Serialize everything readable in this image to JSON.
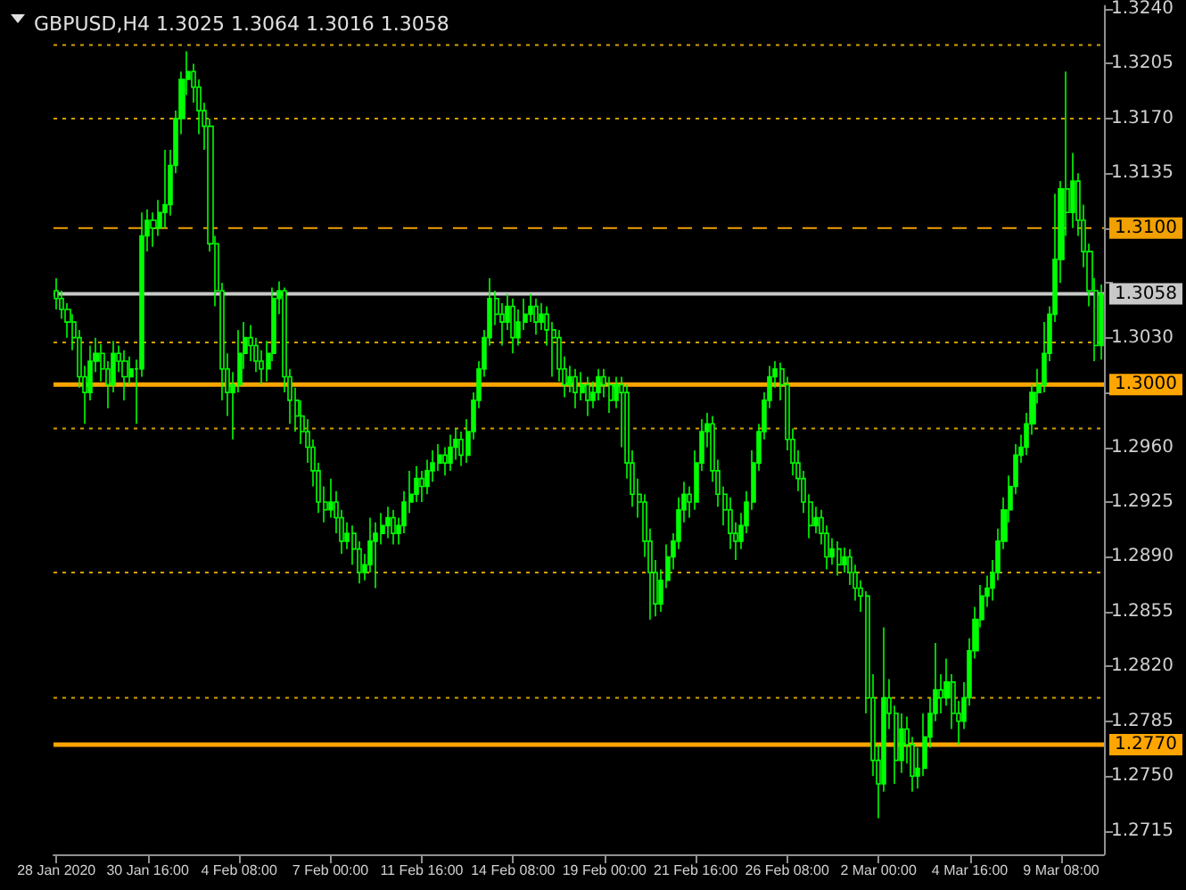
{
  "chart_data": {
    "type": "candlestick",
    "title": "GBPUSD,H4 1.3025 1.3064 1.3016 1.3058",
    "color": "#00ff00",
    "categories": [
      "28 Jan 2020",
      null,
      null,
      null,
      null,
      null,
      null,
      null,
      null,
      null,
      null,
      null,
      null,
      null,
      null,
      null,
      "30 Jan 16:00",
      null,
      null,
      null,
      null,
      null,
      null,
      null,
      null,
      null,
      null,
      null,
      null,
      null,
      null,
      null,
      "4 Feb 08:00",
      null,
      null,
      null,
      null,
      null,
      null,
      null,
      null,
      null,
      null,
      null,
      null,
      null,
      null,
      null,
      "7 Feb 00:00",
      null,
      null,
      null,
      null,
      null,
      null,
      null,
      null,
      null,
      null,
      null,
      null,
      null,
      null,
      null,
      "11 Feb 16:00",
      null,
      null,
      null,
      null,
      null,
      null,
      null,
      null,
      null,
      null,
      null,
      null,
      null,
      null,
      null,
      "14 Feb 08:00",
      null,
      null,
      null,
      null,
      null,
      null,
      null,
      null,
      null,
      null,
      null,
      null,
      null,
      null,
      null,
      "19 Feb 00:00",
      null,
      null,
      null,
      null,
      null,
      null,
      null,
      null,
      null,
      null,
      null,
      null,
      null,
      null,
      null,
      "21 Feb 16:00",
      null,
      null,
      null,
      null,
      null,
      null,
      null,
      null,
      null,
      null,
      null,
      null,
      null,
      null,
      null,
      "26 Feb 08:00",
      null,
      null,
      null,
      null,
      null,
      null,
      null,
      null,
      null,
      null,
      null,
      null,
      null,
      null,
      null,
      "2 Mar 00:00",
      null,
      null,
      null,
      null,
      null,
      null,
      null,
      null,
      null,
      null,
      null,
      null,
      null,
      null,
      null,
      "4 Mar 16:00",
      null,
      null,
      null,
      null,
      null,
      null,
      null,
      null,
      null,
      null,
      null,
      null,
      null,
      null,
      null,
      "9 Mar 08:00",
      null,
      null,
      null,
      null,
      null,
      null,
      null
    ],
    "ohlc": [
      [
        1.306,
        1.3068,
        1.3048,
        1.3055
      ],
      [
        1.3055,
        1.306,
        1.3042,
        1.3048
      ],
      [
        1.3048,
        1.3052,
        1.303,
        1.304
      ],
      [
        1.304,
        1.3045,
        1.3022,
        1.303
      ],
      [
        1.303,
        1.3035,
        1.2998,
        1.3005
      ],
      [
        1.3005,
        1.3012,
        1.2975,
        1.2995
      ],
      [
        1.2995,
        1.3025,
        1.299,
        1.3015
      ],
      [
        1.3015,
        1.303,
        1.3008,
        1.302
      ],
      [
        1.302,
        1.3026,
        1.3002,
        1.301
      ],
      [
        1.301,
        1.3015,
        1.2985,
        1.3
      ],
      [
        1.3,
        1.3028,
        1.2995,
        1.302
      ],
      [
        1.302,
        1.3025,
        1.3008,
        1.3015
      ],
      [
        1.3015,
        1.3022,
        1.299,
        1.3005
      ],
      [
        1.3005,
        1.3018,
        1.3,
        1.301
      ],
      [
        1.301,
        1.3016,
        1.2975,
        1.301
      ],
      [
        1.301,
        1.311,
        1.3005,
        1.3095
      ],
      [
        1.3095,
        1.3112,
        1.3085,
        1.3105
      ],
      [
        1.3105,
        1.311,
        1.3088,
        1.31
      ],
      [
        1.31,
        1.3118,
        1.3095,
        1.311
      ],
      [
        1.311,
        1.315,
        1.31,
        1.3115
      ],
      [
        1.3115,
        1.315,
        1.3108,
        1.314
      ],
      [
        1.314,
        1.3175,
        1.3135,
        1.317
      ],
      [
        1.317,
        1.32,
        1.316,
        1.3195
      ],
      [
        1.3195,
        1.3213,
        1.3185,
        1.32
      ],
      [
        1.32,
        1.3205,
        1.318,
        1.319
      ],
      [
        1.319,
        1.3195,
        1.316,
        1.3175
      ],
      [
        1.3175,
        1.318,
        1.315,
        1.3165
      ],
      [
        1.3165,
        1.317,
        1.3085,
        1.309
      ],
      [
        1.309,
        1.3095,
        1.305,
        1.306
      ],
      [
        1.306,
        1.3065,
        1.299,
        1.301
      ],
      [
        1.301,
        1.302,
        1.298,
        1.2995
      ],
      [
        1.2995,
        1.3008,
        1.2965,
        1.3
      ],
      [
        1.3,
        1.3035,
        1.2995,
        1.302
      ],
      [
        1.302,
        1.304,
        1.301,
        1.303
      ],
      [
        1.303,
        1.3038,
        1.3015,
        1.3025
      ],
      [
        1.3025,
        1.303,
        1.3008,
        1.3015
      ],
      [
        1.3015,
        1.3022,
        1.3,
        1.301
      ],
      [
        1.301,
        1.3028,
        1.3002,
        1.302
      ],
      [
        1.302,
        1.3062,
        1.3015,
        1.3055
      ],
      [
        1.3055,
        1.3066,
        1.3045,
        1.306
      ],
      [
        1.306,
        1.3062,
        1.2995,
        1.3005
      ],
      [
        1.3005,
        1.301,
        1.2975,
        1.299
      ],
      [
        1.299,
        1.2998,
        1.297,
        1.298
      ],
      [
        1.298,
        1.299,
        1.2962,
        1.297
      ],
      [
        1.297,
        1.2978,
        1.295,
        1.296
      ],
      [
        1.296,
        1.2965,
        1.2935,
        1.2945
      ],
      [
        1.2945,
        1.295,
        1.2918,
        1.2925
      ],
      [
        1.2925,
        1.2935,
        1.2912,
        1.292
      ],
      [
        1.292,
        1.294,
        1.2915,
        1.2925
      ],
      [
        1.2925,
        1.2932,
        1.2905,
        1.2915
      ],
      [
        1.2915,
        1.292,
        1.2892,
        1.29
      ],
      [
        1.29,
        1.2912,
        1.2895,
        1.2905
      ],
      [
        1.2905,
        1.291,
        1.2885,
        1.2895
      ],
      [
        1.2895,
        1.29,
        1.2873,
        1.288
      ],
      [
        1.288,
        1.2892,
        1.2875,
        1.2885
      ],
      [
        1.2885,
        1.2915,
        1.288,
        1.29
      ],
      [
        1.29,
        1.2912,
        1.287,
        1.2905
      ],
      [
        1.2905,
        1.2918,
        1.2898,
        1.291
      ],
      [
        1.291,
        1.2922,
        1.2902,
        1.2915
      ],
      [
        1.2915,
        1.292,
        1.2898,
        1.2905
      ],
      [
        1.2905,
        1.2915,
        1.2898,
        1.291
      ],
      [
        1.291,
        1.2932,
        1.2905,
        1.2925
      ],
      [
        1.2925,
        1.2945,
        1.2918,
        1.293
      ],
      [
        1.293,
        1.2948,
        1.2925,
        1.294
      ],
      [
        1.294,
        1.2945,
        1.2925,
        1.2935
      ],
      [
        1.2935,
        1.2952,
        1.293,
        1.2945
      ],
      [
        1.2945,
        1.2958,
        1.2938,
        1.295
      ],
      [
        1.295,
        1.2962,
        1.2945,
        1.2955
      ],
      [
        1.2955,
        1.296,
        1.2942,
        1.295
      ],
      [
        1.295,
        1.2968,
        1.2945,
        1.296
      ],
      [
        1.296,
        1.2972,
        1.2952,
        1.2965
      ],
      [
        1.2965,
        1.297,
        1.2948,
        1.2955
      ],
      [
        1.2955,
        1.2978,
        1.295,
        1.297
      ],
      [
        1.297,
        1.2995,
        1.2965,
        1.299
      ],
      [
        1.299,
        1.3015,
        1.2985,
        1.301
      ],
      [
        1.301,
        1.3035,
        1.3005,
        1.303
      ],
      [
        1.303,
        1.3068,
        1.3025,
        1.3055
      ],
      [
        1.3055,
        1.306,
        1.3038,
        1.3045
      ],
      [
        1.3045,
        1.3052,
        1.3025,
        1.304
      ],
      [
        1.304,
        1.3058,
        1.3035,
        1.305
      ],
      [
        1.305,
        1.3055,
        1.302,
        1.303
      ],
      [
        1.303,
        1.3048,
        1.3025,
        1.304
      ],
      [
        1.304,
        1.3055,
        1.3035,
        1.3045
      ],
      [
        1.3045,
        1.3058,
        1.304,
        1.305
      ],
      [
        1.305,
        1.3055,
        1.3032,
        1.304
      ],
      [
        1.304,
        1.3052,
        1.3035,
        1.3045
      ],
      [
        1.3045,
        1.305,
        1.3025,
        1.3035
      ],
      [
        1.3035,
        1.304,
        1.3005,
        1.303
      ],
      [
        1.303,
        1.3035,
        1.3002,
        1.301
      ],
      [
        1.301,
        1.3018,
        1.2992,
        1.3
      ],
      [
        1.3,
        1.3012,
        1.2995,
        1.3005
      ],
      [
        1.3005,
        1.301,
        1.2985,
        1.2995
      ],
      [
        1.2995,
        1.3008,
        1.299,
        1.3
      ],
      [
        1.3,
        1.3005,
        1.298,
        1.299
      ],
      [
        1.299,
        1.3002,
        1.2985,
        1.2995
      ],
      [
        1.2995,
        1.301,
        1.299,
        1.3005
      ],
      [
        1.3005,
        1.301,
        1.2992,
        1.3
      ],
      [
        1.3,
        1.3005,
        1.2982,
        1.299
      ],
      [
        1.299,
        1.3005,
        1.2985,
        1.3
      ],
      [
        1.3,
        1.3005,
        1.296,
        1.2995
      ],
      [
        1.2995,
        1.3,
        1.294,
        1.295
      ],
      [
        1.295,
        1.2958,
        1.2922,
        1.293
      ],
      [
        1.293,
        1.294,
        1.2915,
        1.2925
      ],
      [
        1.2925,
        1.293,
        1.289,
        1.29
      ],
      [
        1.29,
        1.2908,
        1.285,
        1.288
      ],
      [
        1.288,
        1.2888,
        1.2852,
        1.286
      ],
      [
        1.286,
        1.2882,
        1.2855,
        1.2875
      ],
      [
        1.2875,
        1.2898,
        1.287,
        1.289
      ],
      [
        1.289,
        1.2905,
        1.2882,
        1.29
      ],
      [
        1.29,
        1.2928,
        1.2895,
        1.292
      ],
      [
        1.292,
        1.2938,
        1.2912,
        1.293
      ],
      [
        1.293,
        1.2935,
        1.2915,
        1.2925
      ],
      [
        1.2925,
        1.2958,
        1.292,
        1.295
      ],
      [
        1.295,
        1.2978,
        1.2945,
        1.297
      ],
      [
        1.297,
        1.2982,
        1.296,
        1.2975
      ],
      [
        1.2975,
        1.298,
        1.2938,
        1.2945
      ],
      [
        1.2945,
        1.2952,
        1.2922,
        1.293
      ],
      [
        1.293,
        1.2935,
        1.291,
        1.292
      ],
      [
        1.292,
        1.2928,
        1.2895,
        1.2905
      ],
      [
        1.2905,
        1.2912,
        1.2888,
        1.29
      ],
      [
        1.29,
        1.2918,
        1.2895,
        1.291
      ],
      [
        1.291,
        1.2932,
        1.2905,
        1.2925
      ],
      [
        1.2925,
        1.2958,
        1.292,
        1.295
      ],
      [
        1.295,
        1.2975,
        1.2945,
        1.297
      ],
      [
        1.297,
        1.2995,
        1.2965,
        1.299
      ],
      [
        1.299,
        1.3012,
        1.2985,
        1.3005
      ],
      [
        1.3005,
        1.3015,
        1.2998,
        1.301
      ],
      [
        1.301,
        1.3014,
        1.299,
        1.3
      ],
      [
        1.3,
        1.3005,
        1.2958,
        1.2965
      ],
      [
        1.2965,
        1.2972,
        1.2942,
        1.295
      ],
      [
        1.295,
        1.2958,
        1.2932,
        1.294
      ],
      [
        1.294,
        1.2945,
        1.2918,
        1.2925
      ],
      [
        1.2925,
        1.293,
        1.2902,
        1.291
      ],
      [
        1.291,
        1.2922,
        1.2905,
        1.2915
      ],
      [
        1.2915,
        1.292,
        1.2898,
        1.2905
      ],
      [
        1.2905,
        1.291,
        1.2882,
        1.289
      ],
      [
        1.289,
        1.2902,
        1.2885,
        1.2895
      ],
      [
        1.2895,
        1.29,
        1.2878,
        1.2885
      ],
      [
        1.2885,
        1.2896,
        1.288,
        1.289
      ],
      [
        1.289,
        1.2895,
        1.2872,
        1.288
      ],
      [
        1.288,
        1.2885,
        1.2862,
        1.287
      ],
      [
        1.287,
        1.2875,
        1.2855,
        1.2865
      ],
      [
        1.2865,
        1.2868,
        1.279,
        1.28
      ],
      [
        1.28,
        1.2815,
        1.275,
        1.276
      ],
      [
        1.276,
        1.277,
        1.2723,
        1.2745
      ],
      [
        1.2745,
        1.2845,
        1.274,
        1.28
      ],
      [
        1.28,
        1.2812,
        1.278,
        1.279
      ],
      [
        1.279,
        1.2795,
        1.2745,
        1.276
      ],
      [
        1.276,
        1.279,
        1.2752,
        1.278
      ],
      [
        1.278,
        1.2788,
        1.2758,
        1.277
      ],
      [
        1.277,
        1.2775,
        1.274,
        1.275
      ],
      [
        1.275,
        1.2768,
        1.2742,
        1.2755
      ],
      [
        1.2755,
        1.279,
        1.275,
        1.2775
      ],
      [
        1.2775,
        1.28,
        1.2768,
        1.279
      ],
      [
        1.279,
        1.2835,
        1.2785,
        1.2805
      ],
      [
        1.2805,
        1.2815,
        1.279,
        1.28
      ],
      [
        1.28,
        1.2825,
        1.2795,
        1.281
      ],
      [
        1.281,
        1.2815,
        1.278,
        1.279
      ],
      [
        1.279,
        1.2798,
        1.277,
        1.2785
      ],
      [
        1.2785,
        1.281,
        1.278,
        1.28
      ],
      [
        1.28,
        1.2838,
        1.2795,
        1.283
      ],
      [
        1.283,
        1.2858,
        1.2825,
        1.285
      ],
      [
        1.285,
        1.2872,
        1.2845,
        1.2865
      ],
      [
        1.2865,
        1.2878,
        1.2858,
        1.287
      ],
      [
        1.287,
        1.2888,
        1.2862,
        1.288
      ],
      [
        1.288,
        1.2908,
        1.2875,
        1.29
      ],
      [
        1.29,
        1.2928,
        1.2895,
        1.292
      ],
      [
        1.292,
        1.2942,
        1.2912,
        1.2935
      ],
      [
        1.2935,
        1.2962,
        1.293,
        1.2955
      ],
      [
        1.2955,
        1.2968,
        1.295,
        1.296
      ],
      [
        1.296,
        1.2982,
        1.2955,
        1.2975
      ],
      [
        1.2975,
        1.3,
        1.2968,
        1.2995
      ],
      [
        1.2995,
        1.301,
        1.2988,
        1.3
      ],
      [
        1.3,
        1.304,
        1.2995,
        1.302
      ],
      [
        1.302,
        1.305,
        1.3015,
        1.3045
      ],
      [
        1.3045,
        1.3122,
        1.304,
        1.308
      ],
      [
        1.308,
        1.313,
        1.3065,
        1.3125
      ],
      [
        1.3125,
        1.32,
        1.3095,
        1.311
      ],
      [
        1.311,
        1.3148,
        1.31,
        1.313
      ],
      [
        1.313,
        1.3135,
        1.3095,
        1.3105
      ],
      [
        1.3105,
        1.3115,
        1.3075,
        1.3085
      ],
      [
        1.3085,
        1.309,
        1.305,
        1.306
      ],
      [
        1.306,
        1.3068,
        1.3015,
        1.3025
      ],
      [
        1.3025,
        1.3064,
        1.3016,
        1.3058
      ]
    ],
    "ylim": [
      1.27,
      1.3242
    ],
    "yticks": [
      {
        "value": 1.2715,
        "label": "1.2715"
      },
      {
        "value": 1.275,
        "label": "1.2750"
      },
      {
        "value": 1.2785,
        "label": "1.2785"
      },
      {
        "value": 1.282,
        "label": "1.2820"
      },
      {
        "value": 1.2855,
        "label": "1.2855"
      },
      {
        "value": 1.289,
        "label": "1.2890"
      },
      {
        "value": 1.2925,
        "label": "1.2925"
      },
      {
        "value": 1.296,
        "label": "1.2960"
      },
      {
        "value": 1.2995,
        "label": null
      },
      {
        "value": 1.303,
        "label": "1.3030"
      },
      {
        "value": 1.3065,
        "label": null
      },
      {
        "value": 1.31,
        "label": null
      },
      {
        "value": 1.3135,
        "label": "1.3135"
      },
      {
        "value": 1.317,
        "label": "1.3170"
      },
      {
        "value": 1.3205,
        "label": "1.3205"
      },
      {
        "value": 1.324,
        "label": "1.3240"
      }
    ],
    "ref_lines": [
      {
        "axis": "y",
        "value": 1.3217,
        "color": "#d4a000",
        "line_style": "dotted"
      },
      {
        "axis": "y",
        "value": 1.317,
        "color": "#d4a000",
        "line_style": "dotted"
      },
      {
        "axis": "y",
        "value": 1.31,
        "label": "1.3100",
        "color": "#f0a000",
        "line_style": "dashed"
      },
      {
        "axis": "y",
        "value": 1.3058,
        "label": "1.3058",
        "color": "#c8c8c8",
        "line_style": "solid"
      },
      {
        "axis": "y",
        "value": 1.3027,
        "color": "#d4a000",
        "line_style": "dotted"
      },
      {
        "axis": "y",
        "value": 1.3,
        "label": "1.3000",
        "color": "#ffa500",
        "line_style": "solid"
      },
      {
        "axis": "y",
        "value": 1.2972,
        "color": "#d4a000",
        "line_style": "dotted"
      },
      {
        "axis": "y",
        "value": 1.288,
        "color": "#d4a000",
        "line_style": "dotted"
      },
      {
        "axis": "y",
        "value": 1.28,
        "color": "#d4a000",
        "line_style": "dotted"
      },
      {
        "axis": "y",
        "value": 1.277,
        "label": "1.2770",
        "color": "#ffa500",
        "line_style": "solid"
      }
    ],
    "grid": false
  }
}
